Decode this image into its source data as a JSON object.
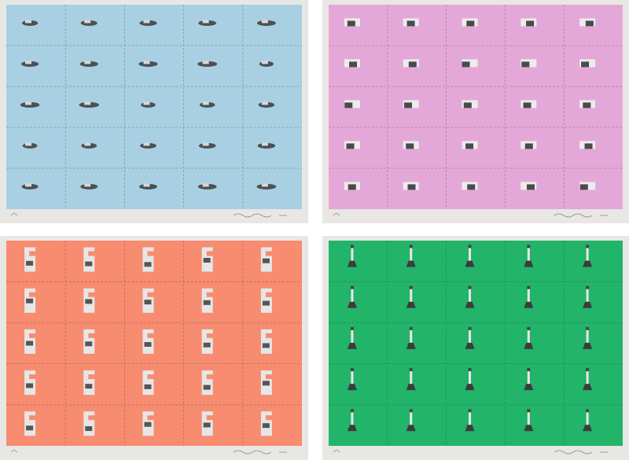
{
  "panels": [
    {
      "color": "#a9cfe2",
      "rows": 5,
      "cols": 5
    },
    {
      "color": "#e4a8d8",
      "rows": 5,
      "cols": 5
    },
    {
      "color": "#f78c70",
      "rows": 5,
      "cols": 5
    },
    {
      "color": "#22b468",
      "rows": 5,
      "cols": 5
    }
  ]
}
